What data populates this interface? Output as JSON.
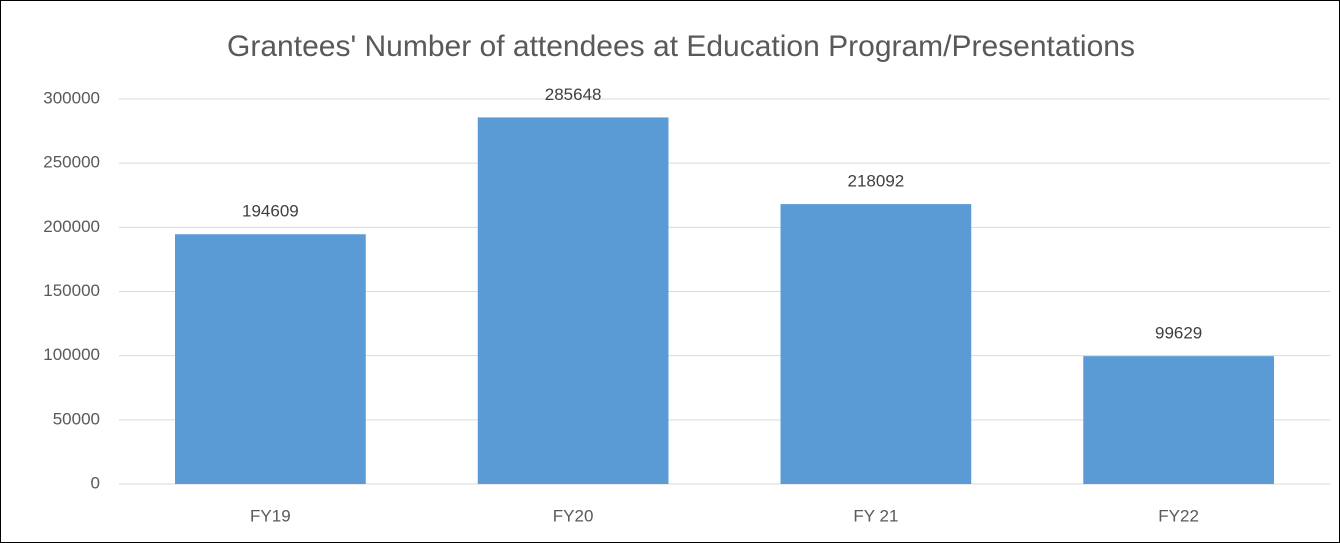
{
  "chart_data": {
    "type": "bar",
    "title": "Grantees' Number of attendees at Education Program/Presentations",
    "categories": [
      "FY19",
      "FY20",
      "FY 21",
      "FY22"
    ],
    "values": [
      194609,
      285648,
      218092,
      99629
    ],
    "color": "#5b9bd5",
    "ylim": [
      0,
      300000
    ],
    "yticks": [
      0,
      50000,
      100000,
      150000,
      200000,
      250000,
      300000
    ],
    "grid": true
  }
}
